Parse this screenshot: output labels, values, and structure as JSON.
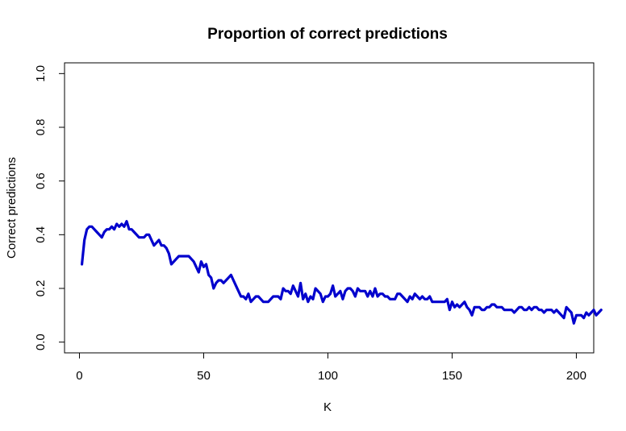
{
  "chart_data": {
    "type": "line",
    "title": "Proportion of correct predictions",
    "xlabel": "K",
    "ylabel": "Correct predictions",
    "xlim": [
      -6,
      207
    ],
    "ylim": [
      -0.04,
      1.04
    ],
    "x_ticks": [
      0,
      50,
      100,
      150,
      200
    ],
    "y_ticks": [
      0.0,
      0.2,
      0.4,
      0.6,
      0.8,
      1.0
    ],
    "x_tick_labels": [
      "0",
      "50",
      "100",
      "150",
      "200"
    ],
    "y_tick_labels": [
      "0.0",
      "0.2",
      "0.4",
      "0.6",
      "0.8",
      "1.0"
    ],
    "grid": false,
    "legend": "none",
    "colors": {
      "series": "#0000cd",
      "axes": "#000000",
      "background": "#ffffff"
    },
    "series": [
      {
        "x_start": 1,
        "x_step": 1,
        "values": [
          0.29,
          0.38,
          0.42,
          0.43,
          0.43,
          0.42,
          0.41,
          0.4,
          0.39,
          0.41,
          0.42,
          0.42,
          0.43,
          0.42,
          0.44,
          0.43,
          0.44,
          0.43,
          0.45,
          0.42,
          0.42,
          0.41,
          0.4,
          0.39,
          0.39,
          0.39,
          0.4,
          0.4,
          0.38,
          0.36,
          0.37,
          0.38,
          0.36,
          0.36,
          0.35,
          0.33,
          0.29,
          0.3,
          0.31,
          0.32,
          0.32,
          0.32,
          0.32,
          0.32,
          0.31,
          0.3,
          0.28,
          0.26,
          0.3,
          0.28,
          0.29,
          0.25,
          0.24,
          0.2,
          0.22,
          0.23,
          0.23,
          0.22,
          0.23,
          0.24,
          0.25,
          0.23,
          0.21,
          0.19,
          0.17,
          0.17,
          0.16,
          0.18,
          0.15,
          0.16,
          0.17,
          0.17,
          0.16,
          0.15,
          0.15,
          0.15,
          0.16,
          0.17,
          0.17,
          0.17,
          0.16,
          0.2,
          0.19,
          0.19,
          0.18,
          0.21,
          0.19,
          0.17,
          0.22,
          0.16,
          0.18,
          0.15,
          0.17,
          0.16,
          0.2,
          0.19,
          0.18,
          0.15,
          0.17,
          0.17,
          0.18,
          0.21,
          0.17,
          0.18,
          0.19,
          0.16,
          0.19,
          0.2,
          0.2,
          0.19,
          0.17,
          0.2,
          0.19,
          0.19,
          0.19,
          0.17,
          0.19,
          0.17,
          0.2,
          0.17,
          0.18,
          0.18,
          0.17,
          0.17,
          0.16,
          0.16,
          0.16,
          0.18,
          0.18,
          0.17,
          0.16,
          0.15,
          0.17,
          0.16,
          0.18,
          0.17,
          0.16,
          0.17,
          0.16,
          0.16,
          0.17,
          0.15,
          0.15,
          0.15,
          0.15,
          0.15,
          0.15,
          0.16,
          0.12,
          0.15,
          0.13,
          0.14,
          0.13,
          0.14,
          0.15,
          0.13,
          0.12,
          0.1,
          0.13,
          0.13,
          0.13,
          0.12,
          0.12,
          0.13,
          0.13,
          0.14,
          0.14,
          0.13,
          0.13,
          0.13,
          0.12,
          0.12,
          0.12,
          0.12,
          0.11,
          0.12,
          0.13,
          0.13,
          0.12,
          0.12,
          0.13,
          0.12,
          0.13,
          0.13,
          0.12,
          0.12,
          0.11,
          0.12,
          0.12,
          0.12,
          0.11,
          0.12,
          0.11,
          0.1,
          0.09,
          0.13,
          0.12,
          0.11,
          0.07,
          0.1,
          0.1,
          0.1,
          0.09,
          0.11,
          0.1,
          0.11,
          0.12,
          0.1,
          0.11,
          0.12
        ]
      }
    ]
  }
}
